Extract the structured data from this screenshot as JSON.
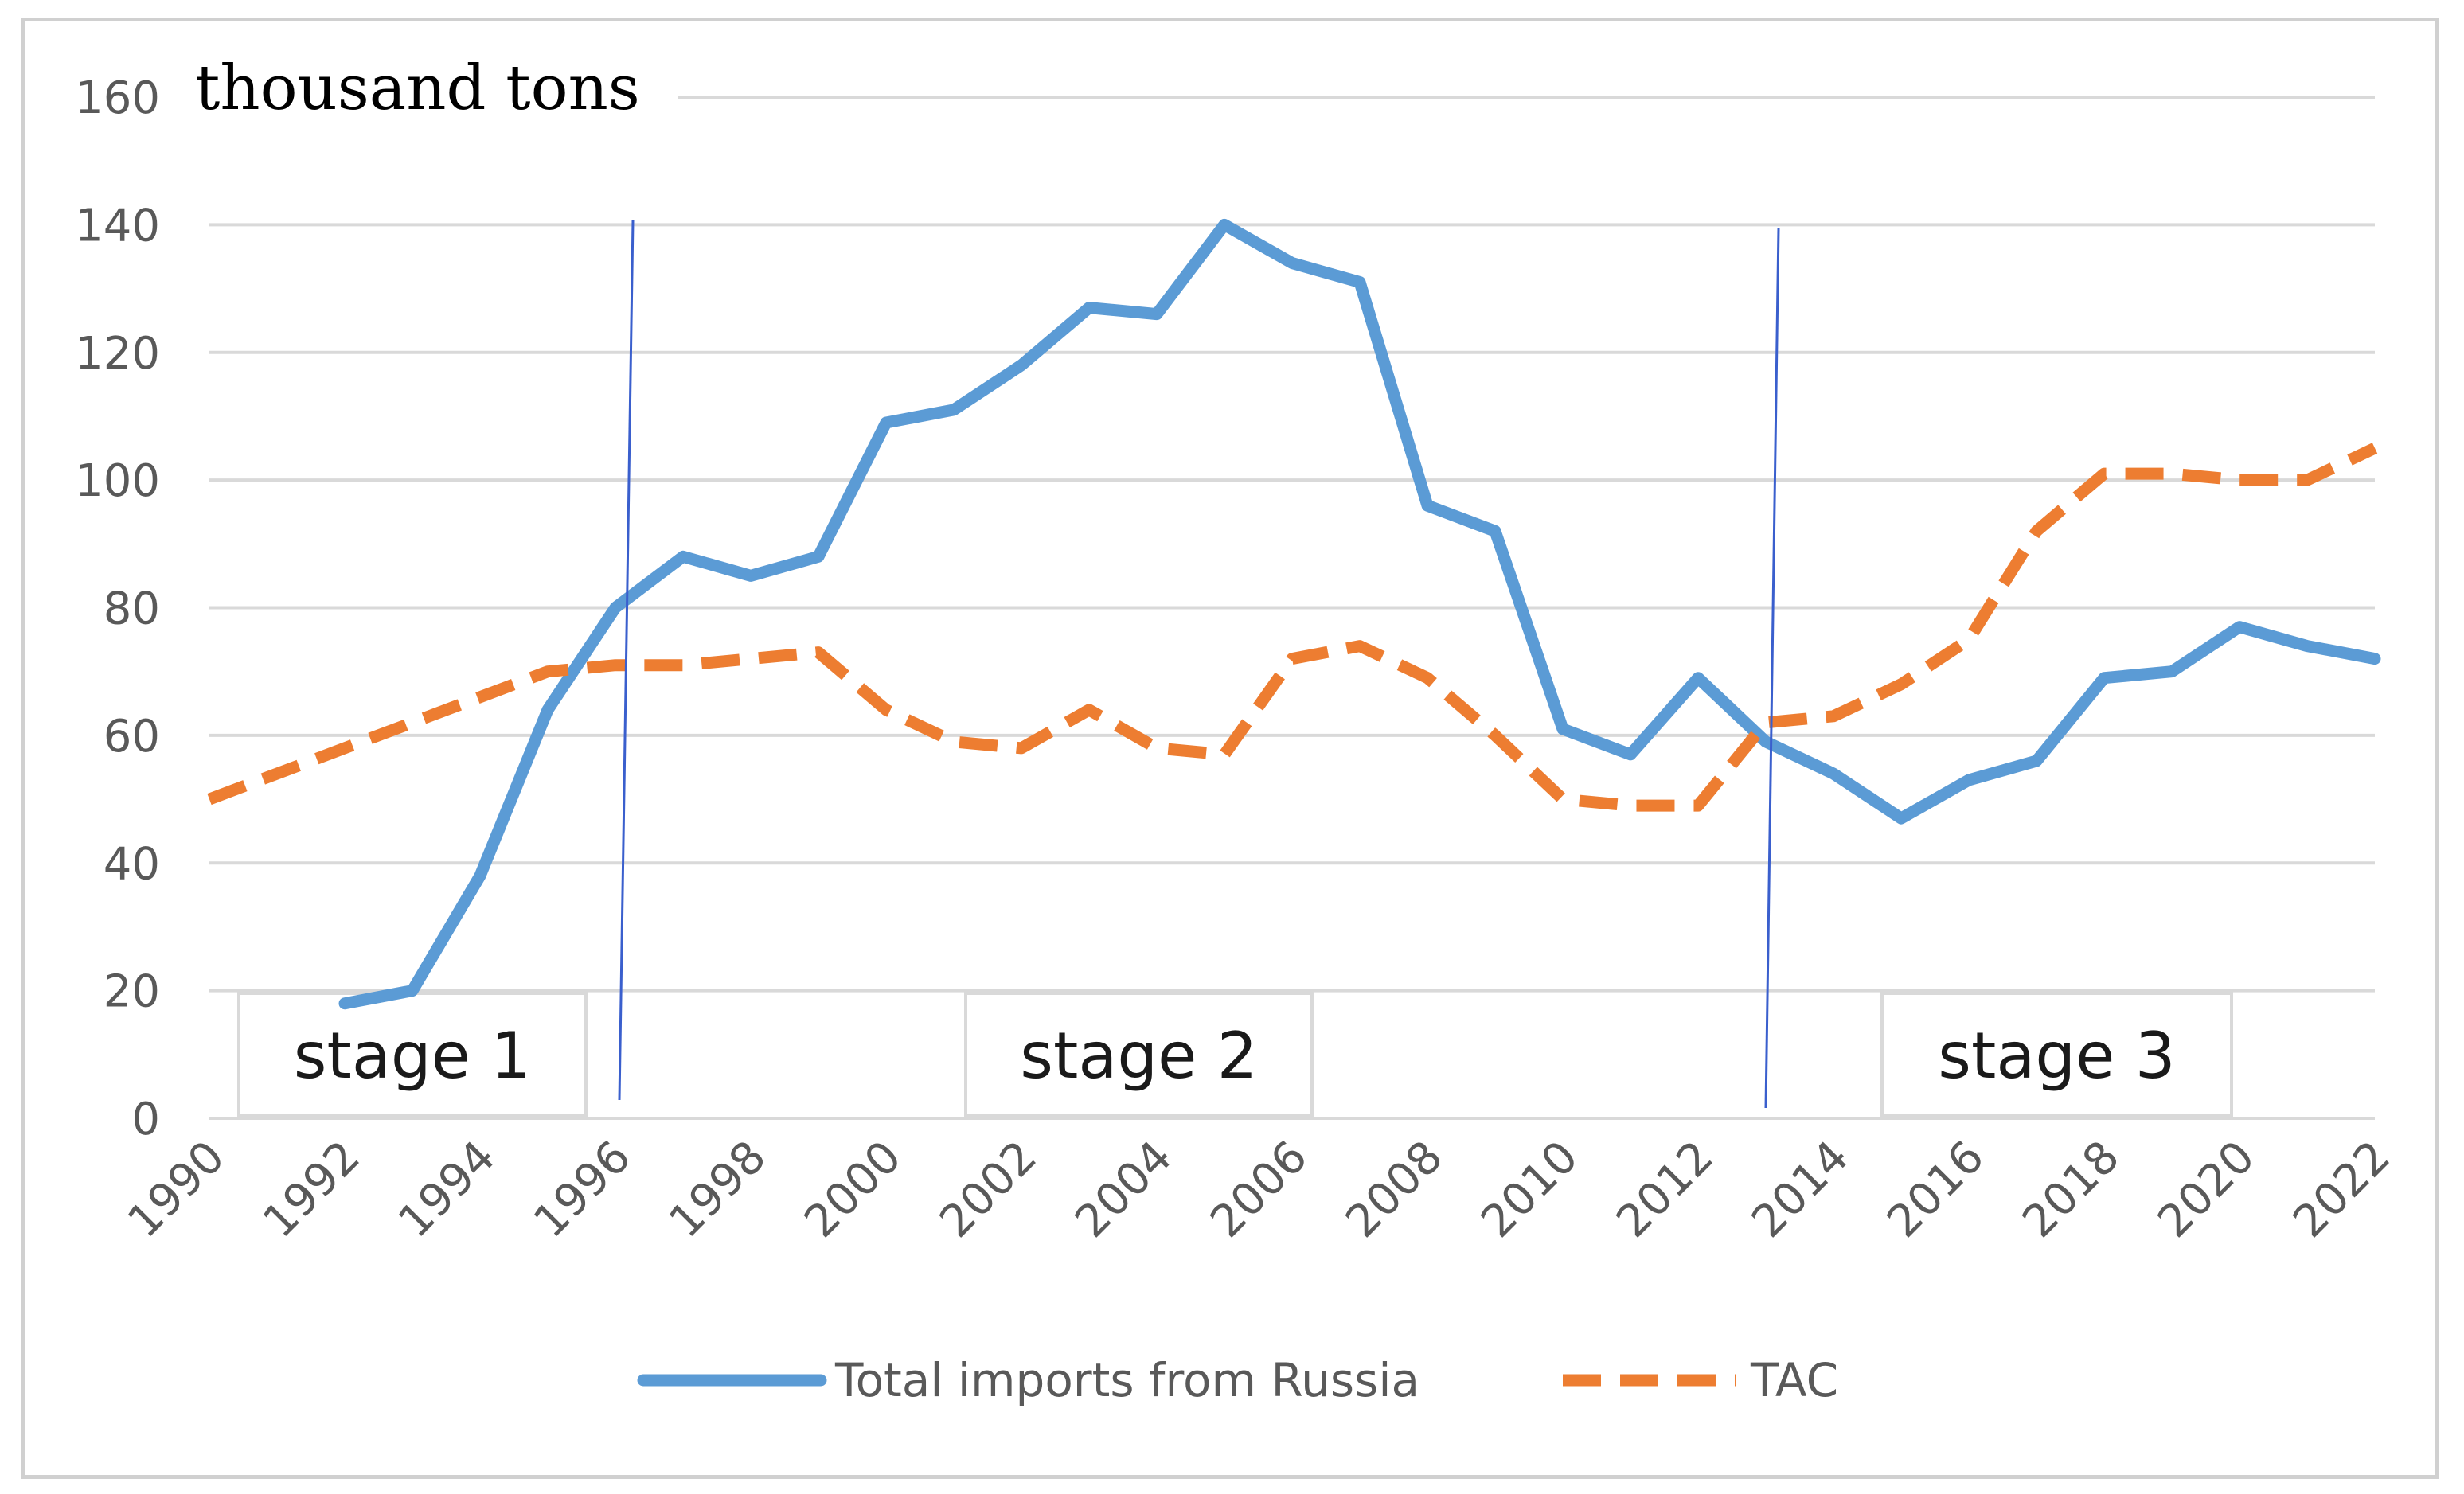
{
  "chart_data": {
    "type": "line",
    "title": "",
    "ylabel": "thousand tons",
    "xlabel": "",
    "ylim": [
      0,
      160
    ],
    "yticks": [
      0,
      20,
      40,
      60,
      80,
      100,
      120,
      140,
      160
    ],
    "xlim": [
      1990,
      2022
    ],
    "xticks": [
      "1990",
      "1992",
      "1994",
      "1996",
      "1998",
      "2000",
      "2002",
      "2004",
      "2006",
      "2008",
      "2010",
      "2012",
      "2014",
      "2016",
      "2018",
      "2020",
      "2022"
    ],
    "grid": true,
    "legend_position": "bottom",
    "series": [
      {
        "name": "Total imports from Russia",
        "color": "#5b9bd5",
        "style": "solid",
        "x": [
          1992,
          1993,
          1994,
          1995,
          1996,
          1997,
          1998,
          1999,
          2000,
          2001,
          2002,
          2003,
          2004,
          2005,
          2006,
          2007,
          2008,
          2009,
          2010,
          2011,
          2012,
          2013,
          2014,
          2015,
          2016,
          2017,
          2018,
          2019,
          2020,
          2021,
          2022
        ],
        "values": [
          18,
          20,
          38,
          64,
          80,
          88,
          85,
          88,
          109,
          111,
          118,
          127,
          126,
          140,
          134,
          131,
          96,
          92,
          61,
          57,
          69,
          59,
          54,
          47,
          53,
          56,
          69,
          70,
          77,
          74,
          72
        ]
      },
      {
        "name": "TAC",
        "color": "#ed7d31",
        "style": "dashed",
        "x": [
          1990,
          1991,
          1992,
          1993,
          1994,
          1995,
          1996,
          1997,
          1998,
          1999,
          2000,
          2001,
          2002,
          2003,
          2004,
          2005,
          2006,
          2007,
          2008,
          2009,
          2010,
          2011,
          2012,
          2013,
          2014,
          2015,
          2016,
          2017,
          2018,
          2019,
          2020,
          2021,
          2022
        ],
        "values": [
          50,
          54,
          58,
          62,
          66,
          70,
          71,
          71,
          72,
          73,
          64,
          59,
          58,
          64,
          58,
          57,
          72,
          74,
          69,
          60,
          50,
          49,
          49,
          62,
          63,
          68,
          75,
          92,
          101,
          101,
          100,
          100,
          105
        ]
      }
    ],
    "stage_dividers": [
      1996,
      2014
    ],
    "stage_labels": [
      "stage 1",
      "stage 2",
      "stage 3"
    ]
  }
}
